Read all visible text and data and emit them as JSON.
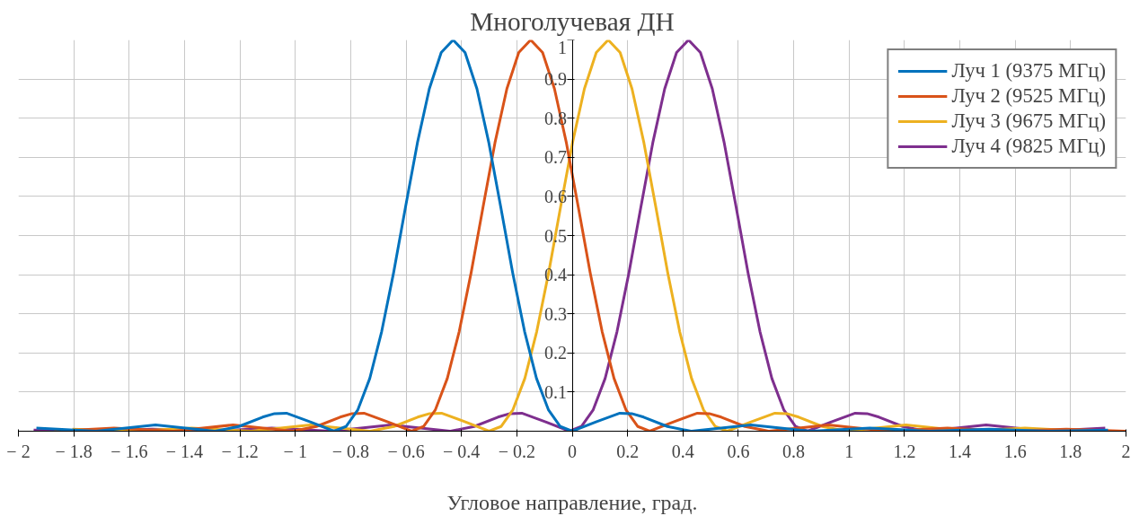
{
  "chart_data": {
    "type": "line",
    "title": "Многолучевая ДН",
    "xlabel": "Угловое направление, град.",
    "xlim": [
      -2,
      2
    ],
    "ylim": [
      0,
      1
    ],
    "xticks": [
      {
        "value": -2,
        "label": "− 2"
      },
      {
        "value": -1.8,
        "label": "− 1.8"
      },
      {
        "value": -1.6,
        "label": "− 1.6"
      },
      {
        "value": -1.4,
        "label": "− 1.4"
      },
      {
        "value": -1.2,
        "label": "− 1.2"
      },
      {
        "value": -1,
        "label": "− 1"
      },
      {
        "value": -0.8,
        "label": "− 0.8"
      },
      {
        "value": -0.6,
        "label": "− 0.6"
      },
      {
        "value": -0.4,
        "label": "− 0.4"
      },
      {
        "value": -0.2,
        "label": "− 0.2"
      },
      0,
      0.2,
      0.4,
      0.6,
      0.8,
      1,
      1.2,
      1.4,
      1.6,
      1.8,
      2
    ],
    "yticks": [
      {
        "value": 0,
        "label": null
      },
      0.1,
      0.2,
      0.3,
      0.4,
      0.5,
      0.6,
      0.7,
      0.8,
      0.9,
      1
    ],
    "grid": true,
    "legend": "top right",
    "marker": "none",
    "line_style": "solid",
    "series": [
      {
        "name": "Луч 1 (9375 МГц)",
        "color": "#0072bd",
        "x": [
          -1.935,
          -1.72,
          -1.505,
          -1.29,
          -1.204,
          -1.118,
          -1.075,
          -1.032,
          -0.946,
          -0.86,
          -0.817,
          -0.774,
          -0.731,
          -0.688,
          -0.645,
          -0.602,
          -0.559,
          -0.516,
          -0.473,
          -0.43,
          -0.387,
          -0.344,
          -0.301,
          -0.258,
          -0.215,
          -0.172,
          -0.129,
          -0.086,
          -0.043,
          0,
          0.086,
          0.172,
          0.215,
          0.258,
          0.344,
          0.43,
          0.645,
          0.86,
          1.075,
          1.29,
          1.505,
          1.72,
          1.935
        ],
        "values": [
          0.008,
          0,
          0.016,
          0,
          0.012,
          0.036,
          0.045,
          0.046,
          0.024,
          0,
          0.012,
          0.055,
          0.135,
          0.255,
          0.405,
          0.573,
          0.737,
          0.875,
          0.968,
          1,
          0.968,
          0.875,
          0.737,
          0.573,
          0.405,
          0.255,
          0.135,
          0.055,
          0.012,
          0,
          0.024,
          0.046,
          0.045,
          0.036,
          0.012,
          0,
          0.016,
          0,
          0.008,
          0,
          0.005,
          0,
          0.003
        ]
      },
      {
        "name": "Луч 2 (9525 МГц)",
        "color": "#d95319",
        "x": [
          -1.87,
          -1.655,
          -1.44,
          -1.225,
          -1.01,
          -0.924,
          -0.838,
          -0.795,
          -0.752,
          -0.666,
          -0.58,
          -0.537,
          -0.494,
          -0.451,
          -0.408,
          -0.365,
          -0.322,
          -0.279,
          -0.236,
          -0.193,
          -0.15,
          -0.107,
          -0.064,
          -0.021,
          0.022,
          0.065,
          0.108,
          0.151,
          0.194,
          0.237,
          0.28,
          0.366,
          0.452,
          0.495,
          0.538,
          0.624,
          0.71,
          0.925,
          1.14,
          1.355,
          1.57,
          1.785,
          2.0
        ],
        "values": [
          0,
          0.008,
          0,
          0.016,
          0,
          0.012,
          0.036,
          0.045,
          0.046,
          0.024,
          0,
          0.012,
          0.055,
          0.135,
          0.255,
          0.405,
          0.573,
          0.737,
          0.875,
          0.968,
          1,
          0.968,
          0.875,
          0.737,
          0.573,
          0.405,
          0.255,
          0.135,
          0.055,
          0.012,
          0,
          0.024,
          0.046,
          0.045,
          0.036,
          0.012,
          0,
          0.016,
          0,
          0.008,
          0,
          0.005,
          0
        ]
      },
      {
        "name": "Луч 3 (9675 МГц)",
        "color": "#edb120",
        "x": [
          -1.805,
          -1.59,
          -1.375,
          -1.16,
          -0.945,
          -0.73,
          -0.644,
          -0.558,
          -0.515,
          -0.472,
          -0.386,
          -0.3,
          -0.257,
          -0.214,
          -0.171,
          -0.128,
          -0.085,
          -0.042,
          0.001,
          0.044,
          0.087,
          0.13,
          0.173,
          0.216,
          0.259,
          0.302,
          0.345,
          0.388,
          0.431,
          0.474,
          0.517,
          0.56,
          0.646,
          0.732,
          0.775,
          0.818,
          0.904,
          0.99,
          1.205,
          1.42,
          1.635,
          1.85
        ],
        "values": [
          0.005,
          0,
          0.008,
          0,
          0.016,
          0,
          0.012,
          0.036,
          0.045,
          0.046,
          0.024,
          0,
          0.012,
          0.055,
          0.135,
          0.255,
          0.405,
          0.573,
          0.737,
          0.875,
          0.968,
          1,
          0.968,
          0.875,
          0.737,
          0.573,
          0.405,
          0.255,
          0.135,
          0.055,
          0.012,
          0,
          0.024,
          0.046,
          0.045,
          0.036,
          0.012,
          0,
          0.016,
          0,
          0.008,
          0
        ]
      },
      {
        "name": "Луч 4 (9825 МГц)",
        "color": "#7e2f8e",
        "x": [
          -1.945,
          -1.73,
          -1.515,
          -1.3,
          -1.085,
          -0.87,
          -0.655,
          -0.44,
          -0.354,
          -0.268,
          -0.225,
          -0.182,
          -0.096,
          -0.01,
          0.033,
          0.076,
          0.119,
          0.162,
          0.205,
          0.248,
          0.291,
          0.334,
          0.377,
          0.42,
          0.463,
          0.506,
          0.549,
          0.592,
          0.635,
          0.678,
          0.721,
          0.764,
          0.807,
          0.85,
          0.936,
          1.022,
          1.065,
          1.108,
          1.194,
          1.28,
          1.495,
          1.71,
          1.925
        ],
        "values": [
          0.003,
          0,
          0.005,
          0,
          0.008,
          0,
          0.016,
          0,
          0.012,
          0.036,
          0.045,
          0.046,
          0.024,
          0,
          0.012,
          0.055,
          0.135,
          0.255,
          0.405,
          0.573,
          0.737,
          0.875,
          0.968,
          1,
          0.968,
          0.875,
          0.737,
          0.573,
          0.405,
          0.255,
          0.135,
          0.055,
          0.012,
          0,
          0.024,
          0.046,
          0.045,
          0.036,
          0.012,
          0,
          0.016,
          0,
          0.008
        ]
      }
    ]
  }
}
